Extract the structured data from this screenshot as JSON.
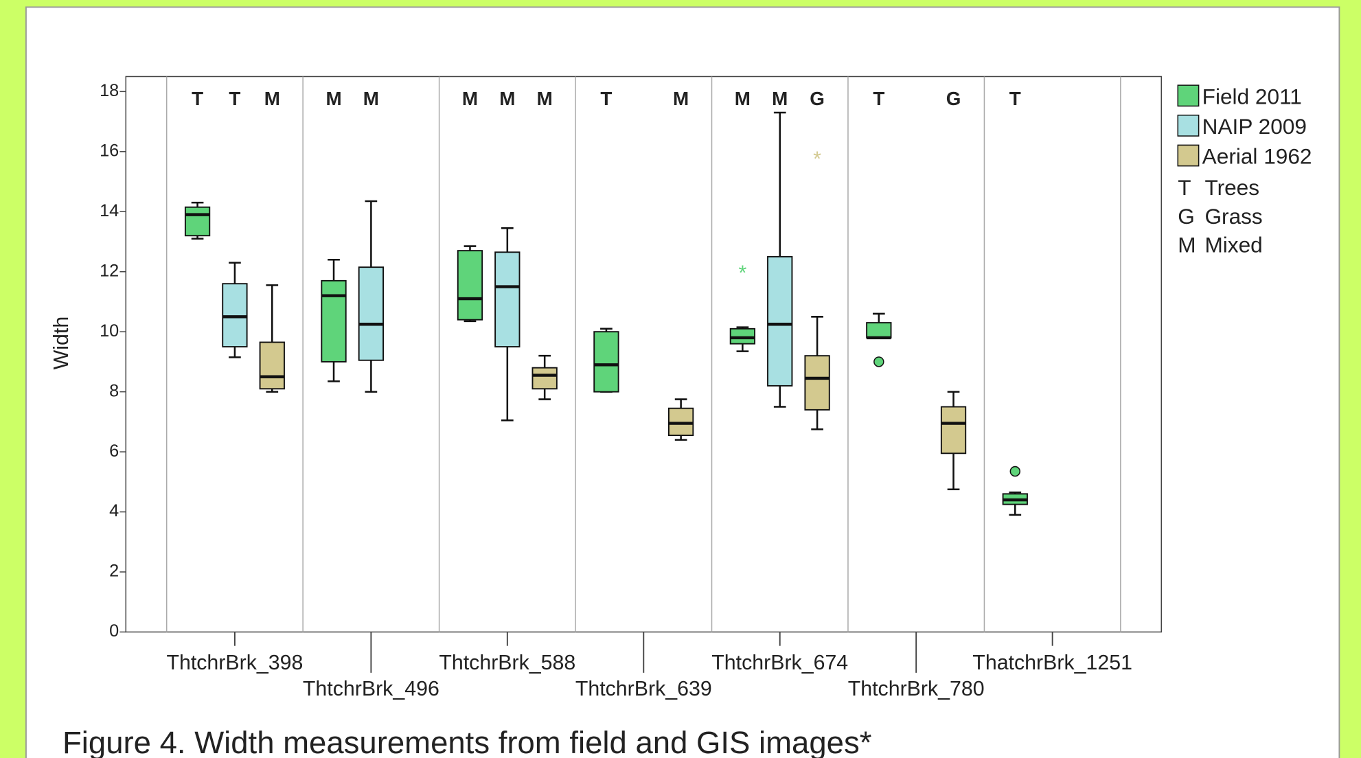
{
  "chart_data": {
    "type": "box",
    "y_label": "Width",
    "caption": "Figure 4. Width measurements from field and GIS images*",
    "categories": [
      "ThtchrBrk_398",
      "ThtchrBrk_496",
      "ThtchrBrk_588",
      "ThtchrBrk_639",
      "ThtchrBrk_674",
      "ThtchrBrk_780",
      "ThatchrBrk_1251"
    ],
    "ylim": [
      0,
      18.5
    ],
    "yticks": [
      0,
      2,
      4,
      6,
      8,
      10,
      12,
      14,
      16,
      18
    ],
    "series": [
      {
        "name": "Field 2011",
        "color": "#5fd47a",
        "values": [
          {
            "min": 13.1,
            "q1": 13.2,
            "median": 13.9,
            "q3": 14.15,
            "max": 14.3,
            "cover": "T"
          },
          {
            "min": 8.35,
            "q1": 9.0,
            "median": 11.2,
            "q3": 11.7,
            "max": 12.4,
            "cover": "M"
          },
          {
            "min": 10.35,
            "q1": 10.4,
            "median": 11.1,
            "q3": 12.7,
            "max": 12.85,
            "cover": "M"
          },
          {
            "min": 8.0,
            "q1": 8.0,
            "median": 8.9,
            "q3": 10.0,
            "max": 10.1,
            "cover": "T"
          },
          {
            "min": 9.35,
            "q1": 9.6,
            "median": 9.8,
            "q3": 10.1,
            "max": 10.15,
            "extremes": [
              12.0
            ],
            "cover": "M"
          },
          {
            "min": 9.8,
            "q1": 9.8,
            "median": 9.8,
            "q3": 10.3,
            "max": 10.6,
            "outliers": [
              9.0
            ],
            "cover": "T"
          },
          {
            "min": 3.9,
            "q1": 4.25,
            "median": 4.4,
            "q3": 4.6,
            "max": 4.65,
            "outliers": [
              5.35
            ],
            "cover": "T"
          }
        ]
      },
      {
        "name": "NAIP 2009",
        "color": "#a8e0e2",
        "values": [
          {
            "min": 9.15,
            "q1": 9.5,
            "median": 10.5,
            "q3": 11.6,
            "max": 12.3,
            "cover": "T"
          },
          {
            "min": 8.0,
            "q1": 9.05,
            "median": 10.25,
            "q3": 12.15,
            "max": 14.35,
            "cover": "M"
          },
          {
            "min": 7.05,
            "q1": 9.5,
            "median": 11.5,
            "q3": 12.65,
            "max": 13.45,
            "cover": "M"
          },
          null,
          {
            "min": 7.5,
            "q1": 8.2,
            "median": 10.25,
            "q3": 12.5,
            "max": 17.3,
            "cover": "M"
          },
          null,
          null
        ]
      },
      {
        "name": "Aerial 1962",
        "color": "#d3c98f",
        "values": [
          {
            "min": 8.0,
            "q1": 8.1,
            "median": 8.5,
            "q3": 9.65,
            "max": 11.55,
            "cover": "M"
          },
          null,
          {
            "min": 7.75,
            "q1": 8.1,
            "median": 8.55,
            "q3": 8.8,
            "max": 9.2,
            "cover": "M"
          },
          {
            "min": 6.4,
            "q1": 6.55,
            "median": 6.95,
            "q3": 7.45,
            "max": 7.75,
            "cover": "M"
          },
          {
            "min": 6.75,
            "q1": 7.4,
            "median": 8.45,
            "q3": 9.2,
            "max": 10.5,
            "extremes": [
              15.8
            ],
            "cover": "G"
          },
          {
            "min": 4.75,
            "q1": 5.95,
            "median": 6.95,
            "q3": 7.5,
            "max": 8.0,
            "cover": "G"
          },
          null
        ]
      }
    ],
    "cover_key": [
      {
        "code": "T",
        "label": "Trees"
      },
      {
        "code": "G",
        "label": "Grass"
      },
      {
        "code": "M",
        "label": "Mixed"
      }
    ]
  }
}
